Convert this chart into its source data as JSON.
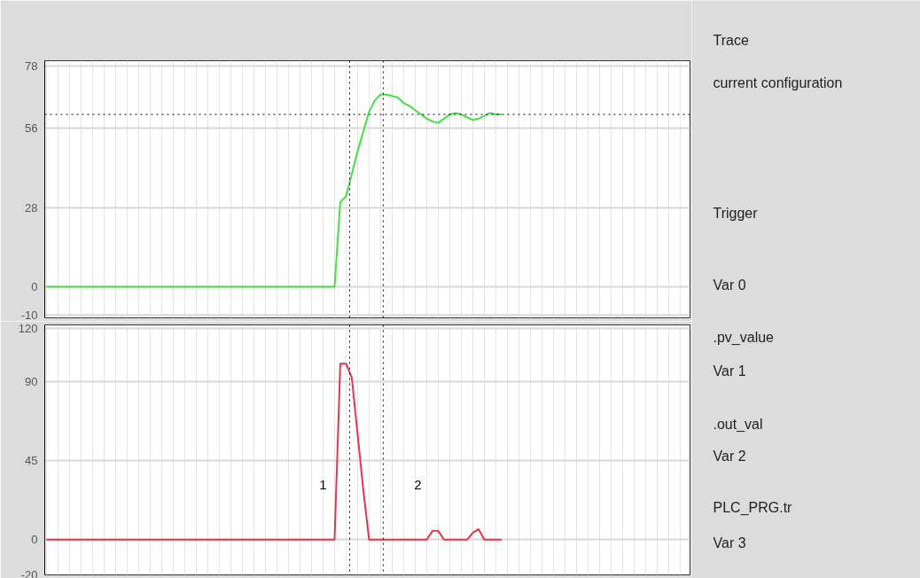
{
  "chart_data": [
    {
      "type": "line",
      "categories": [
        null,
        null,
        null,
        null,
        null,
        null,
        null,
        null,
        null,
        null,
        null,
        null,
        null,
        null,
        null,
        null,
        null,
        null,
        null,
        null,
        null,
        null,
        null,
        null,
        null,
        null,
        null,
        null,
        null,
        null,
        null,
        null,
        null,
        null,
        null,
        null,
        null,
        null,
        null,
        null,
        null,
        null,
        null,
        null,
        null,
        null,
        null,
        null,
        null,
        null,
        null,
        null,
        null,
        null,
        null,
        null,
        null,
        null,
        null,
        null,
        null,
        null,
        null,
        null,
        null,
        null,
        null,
        null,
        null,
        null,
        null,
        null,
        null,
        null,
        null,
        null,
        null,
        null,
        null,
        null,
        null,
        null,
        null,
        null,
        null,
        null,
        null,
        null,
        null,
        null,
        null,
        null,
        null,
        null,
        null,
        null,
        null,
        null,
        null,
        null,
        null,
        null,
        null,
        null,
        null,
        null,
        null,
        null,
        null,
        null,
        null,
        null
      ],
      "series": [
        {
          "color": "#44e044",
          "values": [
            0,
            0,
            0,
            0,
            0,
            0,
            0,
            0,
            0,
            0,
            0,
            0,
            0,
            0,
            0,
            0,
            0,
            0,
            0,
            0,
            0,
            0,
            0,
            0,
            0,
            0,
            0,
            0,
            0,
            0,
            0,
            0,
            0,
            0,
            0,
            0,
            0,
            0,
            0,
            0,
            0,
            0,
            0,
            0,
            0,
            0,
            0,
            0,
            0,
            0,
            0,
            30,
            32,
            40,
            48,
            55,
            62,
            66,
            68,
            68,
            67.5,
            67,
            65,
            64,
            62.5,
            61,
            59.5,
            58.5,
            58,
            59.5,
            61,
            61.5,
            61,
            60,
            59,
            59.5,
            60.5,
            61.5,
            61,
            61,
            null,
            null,
            null,
            null,
            null,
            null,
            null,
            null,
            null,
            null,
            null,
            null,
            null,
            null,
            null,
            null,
            null,
            null,
            null,
            null,
            null,
            null,
            null,
            null,
            null,
            null,
            null,
            null,
            null,
            null,
            null,
            null
          ]
        }
      ],
      "ylim": [
        -11,
        80
      ],
      "yticks": [
        78,
        56,
        28,
        0,
        -10
      ],
      "grid": true,
      "tick_labels": "y",
      "ref_lines": [
        {
          "axis": "y",
          "value": 61,
          "color": "#000000",
          "line_style": "dotted"
        }
      ]
    },
    {
      "type": "line",
      "categories": [
        null,
        null,
        null,
        null,
        null,
        null,
        null,
        null,
        null,
        null,
        null,
        null,
        null,
        null,
        null,
        null,
        null,
        null,
        null,
        null,
        null,
        null,
        null,
        null,
        null,
        null,
        null,
        null,
        null,
        null,
        null,
        null,
        null,
        null,
        null,
        null,
        null,
        null,
        null,
        null,
        null,
        null,
        null,
        null,
        null,
        null,
        null,
        null,
        null,
        null,
        null,
        null,
        null,
        null,
        null,
        null,
        null,
        null,
        null,
        null,
        null,
        null,
        null,
        null,
        null,
        null,
        null,
        null,
        null,
        null,
        null,
        null,
        null,
        null,
        null,
        null,
        null,
        null,
        null,
        null,
        null,
        null,
        null,
        null,
        null,
        null,
        null,
        null,
        null,
        null,
        null,
        null,
        null,
        null,
        null,
        null,
        null,
        null,
        null,
        null,
        null,
        null,
        null,
        null,
        null,
        null,
        null,
        null,
        null,
        null,
        null,
        null
      ],
      "series": [
        {
          "color": "#e8344c",
          "values": [
            0,
            0,
            0,
            0,
            0,
            0,
            0,
            0,
            0,
            0,
            0,
            0,
            0,
            0,
            0,
            0,
            0,
            0,
            0,
            0,
            0,
            0,
            0,
            0,
            0,
            0,
            0,
            0,
            0,
            0,
            0,
            0,
            0,
            0,
            0,
            0,
            0,
            0,
            0,
            0,
            0,
            0,
            0,
            0,
            0,
            0,
            0,
            0,
            0,
            0,
            0,
            100,
            100,
            92,
            60,
            28,
            0,
            0,
            0,
            0,
            0,
            0,
            0,
            0,
            0,
            0,
            0,
            5,
            5,
            0,
            0,
            0,
            0,
            0,
            4,
            6,
            0,
            0,
            0,
            0,
            null,
            null,
            null,
            null,
            null,
            null,
            null,
            null,
            null,
            null,
            null,
            null,
            null,
            null,
            null,
            null,
            null,
            null,
            null,
            null,
            null,
            null,
            null,
            null,
            null,
            null,
            null,
            null,
            null,
            null,
            null,
            null
          ]
        }
      ],
      "ylim": [
        -20,
        122
      ],
      "yticks": [
        120,
        90,
        45,
        0,
        -20
      ],
      "grid": true,
      "tick_labels": "y",
      "annotations": [
        "1",
        "2"
      ]
    },
    {
      "type": "other",
      "annotations": [
        "Trace",
        "current configuration",
        "Trigger",
        "Var 0",
        ".pv_value",
        "Var 1",
        ".out_val",
        "Var 2",
        "PLC_PRG.tr",
        "Var 3"
      ]
    }
  ]
}
